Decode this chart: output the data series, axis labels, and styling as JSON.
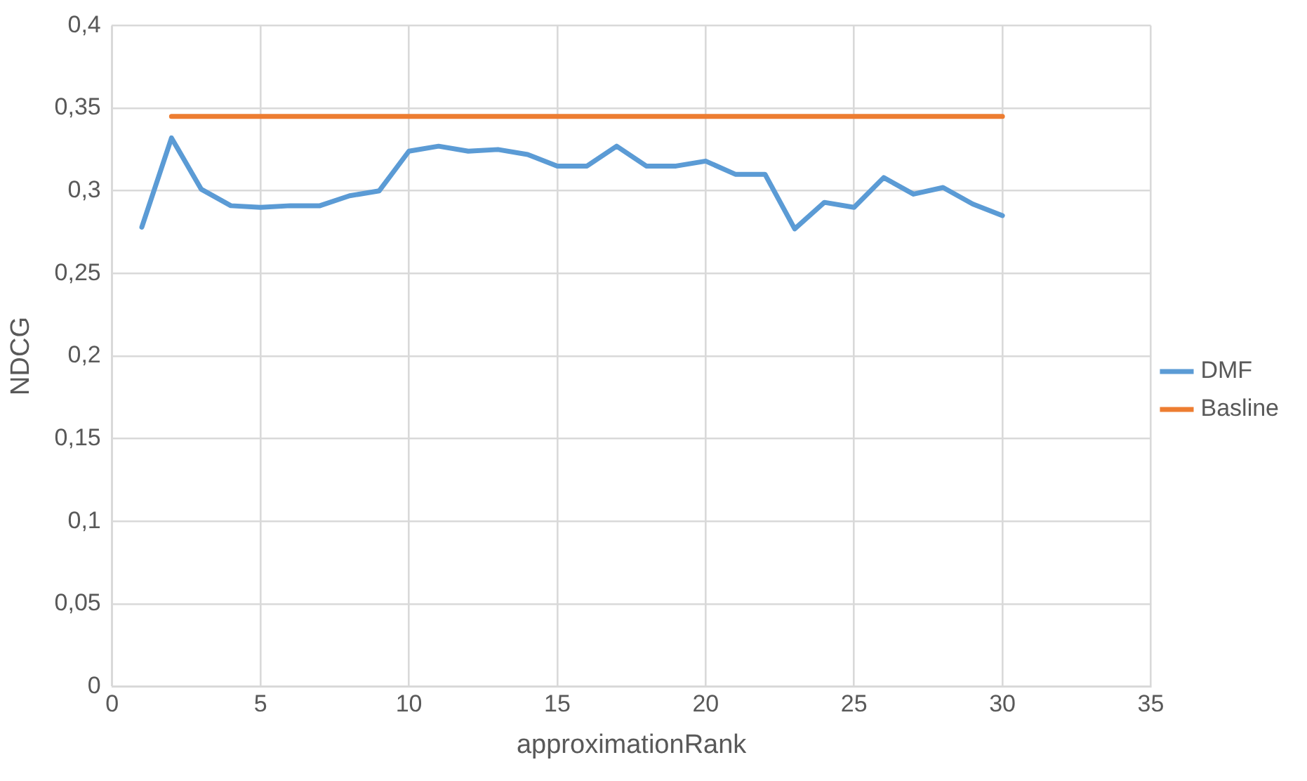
{
  "chart_data": {
    "type": "line",
    "xlabel": "approximationRank",
    "ylabel": "NDCG",
    "series": [
      {
        "name": "DMF",
        "color": "#5b9bd5",
        "x": [
          1,
          2,
          3,
          4,
          5,
          6,
          7,
          8,
          9,
          10,
          11,
          12,
          13,
          14,
          15,
          16,
          17,
          18,
          19,
          20,
          21,
          22,
          23,
          24,
          25,
          26,
          27,
          28,
          29,
          30
        ],
        "values": [
          0.278,
          0.332,
          0.301,
          0.291,
          0.29,
          0.291,
          0.291,
          0.297,
          0.3,
          0.324,
          0.327,
          0.324,
          0.325,
          0.322,
          0.315,
          0.315,
          0.327,
          0.315,
          0.315,
          0.318,
          0.31,
          0.31,
          0.277,
          0.293,
          0.29,
          0.308,
          0.298,
          0.302,
          0.292,
          0.285
        ]
      },
      {
        "name": "Basline",
        "color": "#ed7d31",
        "x": [
          2,
          30
        ],
        "values": [
          0.345,
          0.345
        ]
      }
    ],
    "xlim": [
      0,
      35
    ],
    "xticks": [
      0,
      5,
      10,
      15,
      20,
      25,
      30,
      35
    ],
    "ylim": [
      0,
      0.4
    ],
    "yticks": [
      0,
      {
        "value": 0.05,
        "label": "0,05"
      },
      {
        "value": 0.1,
        "label": "0,1"
      },
      {
        "value": 0.15,
        "label": "0,15"
      },
      {
        "value": 0.2,
        "label": "0,2"
      },
      {
        "value": 0.25,
        "label": "0,25"
      },
      {
        "value": 0.3,
        "label": "0,3"
      },
      {
        "value": 0.35,
        "label": "0,35"
      },
      {
        "value": 0.4,
        "label": "0,4"
      }
    ],
    "grid": true,
    "legend": "right",
    "marker": "none",
    "line_style": "solid"
  }
}
